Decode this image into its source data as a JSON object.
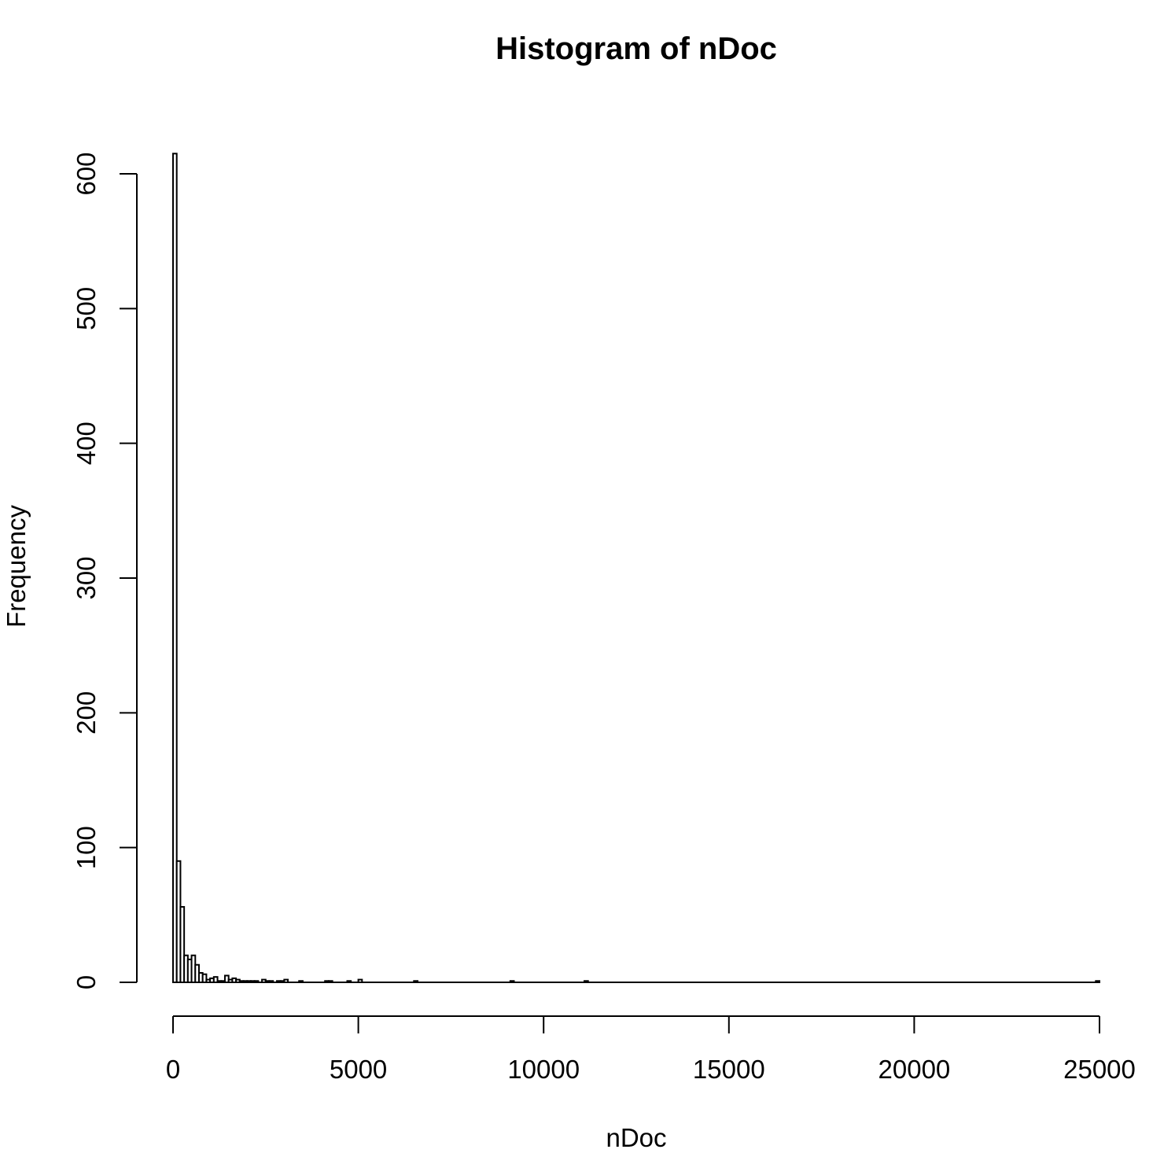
{
  "chart_data": {
    "type": "bar",
    "title": "Histogram of nDoc",
    "xlabel": "nDoc",
    "ylabel": "Frequency",
    "xlim": [
      0,
      25000
    ],
    "ylim": [
      0,
      600
    ],
    "x_ticks": [
      0,
      5000,
      10000,
      15000,
      20000,
      25000
    ],
    "x_tick_labels": [
      "0",
      "5000",
      "10000",
      "15000",
      "20000",
      "25000"
    ],
    "y_ticks": [
      0,
      100,
      200,
      300,
      400,
      500,
      600
    ],
    "y_tick_labels": [
      "0",
      "100",
      "200",
      "300",
      "400",
      "500",
      "600"
    ],
    "grid": false,
    "bin_width": 100,
    "bins": [
      {
        "x0": 0,
        "x1": 100,
        "count": 615
      },
      {
        "x0": 100,
        "x1": 200,
        "count": 90
      },
      {
        "x0": 200,
        "x1": 300,
        "count": 56
      },
      {
        "x0": 300,
        "x1": 400,
        "count": 20
      },
      {
        "x0": 400,
        "x1": 500,
        "count": 17
      },
      {
        "x0": 500,
        "x1": 600,
        "count": 20
      },
      {
        "x0": 600,
        "x1": 700,
        "count": 13
      },
      {
        "x0": 700,
        "x1": 800,
        "count": 7
      },
      {
        "x0": 800,
        "x1": 900,
        "count": 6
      },
      {
        "x0": 900,
        "x1": 1000,
        "count": 2
      },
      {
        "x0": 1000,
        "x1": 1100,
        "count": 3
      },
      {
        "x0": 1100,
        "x1": 1200,
        "count": 4
      },
      {
        "x0": 1200,
        "x1": 1300,
        "count": 1
      },
      {
        "x0": 1300,
        "x1": 1400,
        "count": 1
      },
      {
        "x0": 1400,
        "x1": 1500,
        "count": 5
      },
      {
        "x0": 1500,
        "x1": 1600,
        "count": 2
      },
      {
        "x0": 1600,
        "x1": 1700,
        "count": 3
      },
      {
        "x0": 1700,
        "x1": 1800,
        "count": 2
      },
      {
        "x0": 1800,
        "x1": 1900,
        "count": 1
      },
      {
        "x0": 1900,
        "x1": 2000,
        "count": 1
      },
      {
        "x0": 2000,
        "x1": 2100,
        "count": 1
      },
      {
        "x0": 2100,
        "x1": 2200,
        "count": 1
      },
      {
        "x0": 2200,
        "x1": 2300,
        "count": 1
      },
      {
        "x0": 2400,
        "x1": 2500,
        "count": 2
      },
      {
        "x0": 2500,
        "x1": 2600,
        "count": 1
      },
      {
        "x0": 2600,
        "x1": 2700,
        "count": 1
      },
      {
        "x0": 2800,
        "x1": 2900,
        "count": 1
      },
      {
        "x0": 2900,
        "x1": 3000,
        "count": 1
      },
      {
        "x0": 3000,
        "x1": 3100,
        "count": 2
      },
      {
        "x0": 3400,
        "x1": 3500,
        "count": 1
      },
      {
        "x0": 4100,
        "x1": 4200,
        "count": 1
      },
      {
        "x0": 4200,
        "x1": 4300,
        "count": 1
      },
      {
        "x0": 4700,
        "x1": 4800,
        "count": 1
      },
      {
        "x0": 5000,
        "x1": 5100,
        "count": 2
      },
      {
        "x0": 6500,
        "x1": 6600,
        "count": 1
      },
      {
        "x0": 9100,
        "x1": 9200,
        "count": 1
      },
      {
        "x0": 11100,
        "x1": 11200,
        "count": 1
      },
      {
        "x0": 24900,
        "x1": 25000,
        "count": 1
      }
    ]
  }
}
